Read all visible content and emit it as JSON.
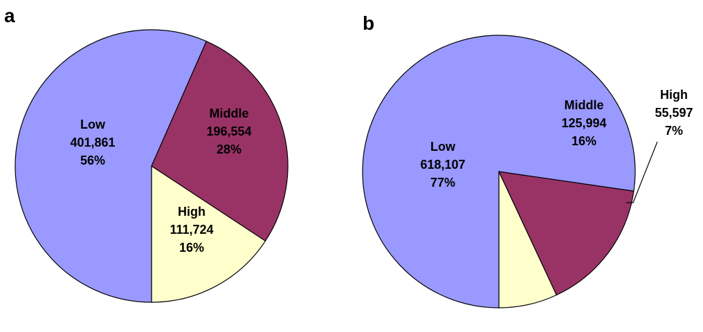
{
  "chart_data": [
    {
      "type": "pie",
      "panel": "a",
      "slices": [
        {
          "category": "Low",
          "value": 401861,
          "value_label": "401,861",
          "percent_label": "56%",
          "color": "#9999ff"
        },
        {
          "category": "Middle",
          "value": 196554,
          "value_label": "196,554",
          "percent_label": "28%",
          "color": "#993366"
        },
        {
          "category": "High",
          "value": 111724,
          "value_label": "111,724",
          "percent_label": "16%",
          "color": "#ffffcc"
        }
      ]
    },
    {
      "type": "pie",
      "panel": "b",
      "slices": [
        {
          "category": "Low",
          "value": 618107,
          "value_label": "618,107",
          "percent_label": "77%",
          "color": "#9999ff"
        },
        {
          "category": "Middle",
          "value": 125994,
          "value_label": "125,994",
          "percent_label": "16%",
          "color": "#993366"
        },
        {
          "category": "High",
          "value": 55597,
          "value_label": "55,597",
          "percent_label": "7%",
          "color": "#ffffcc"
        }
      ]
    }
  ]
}
